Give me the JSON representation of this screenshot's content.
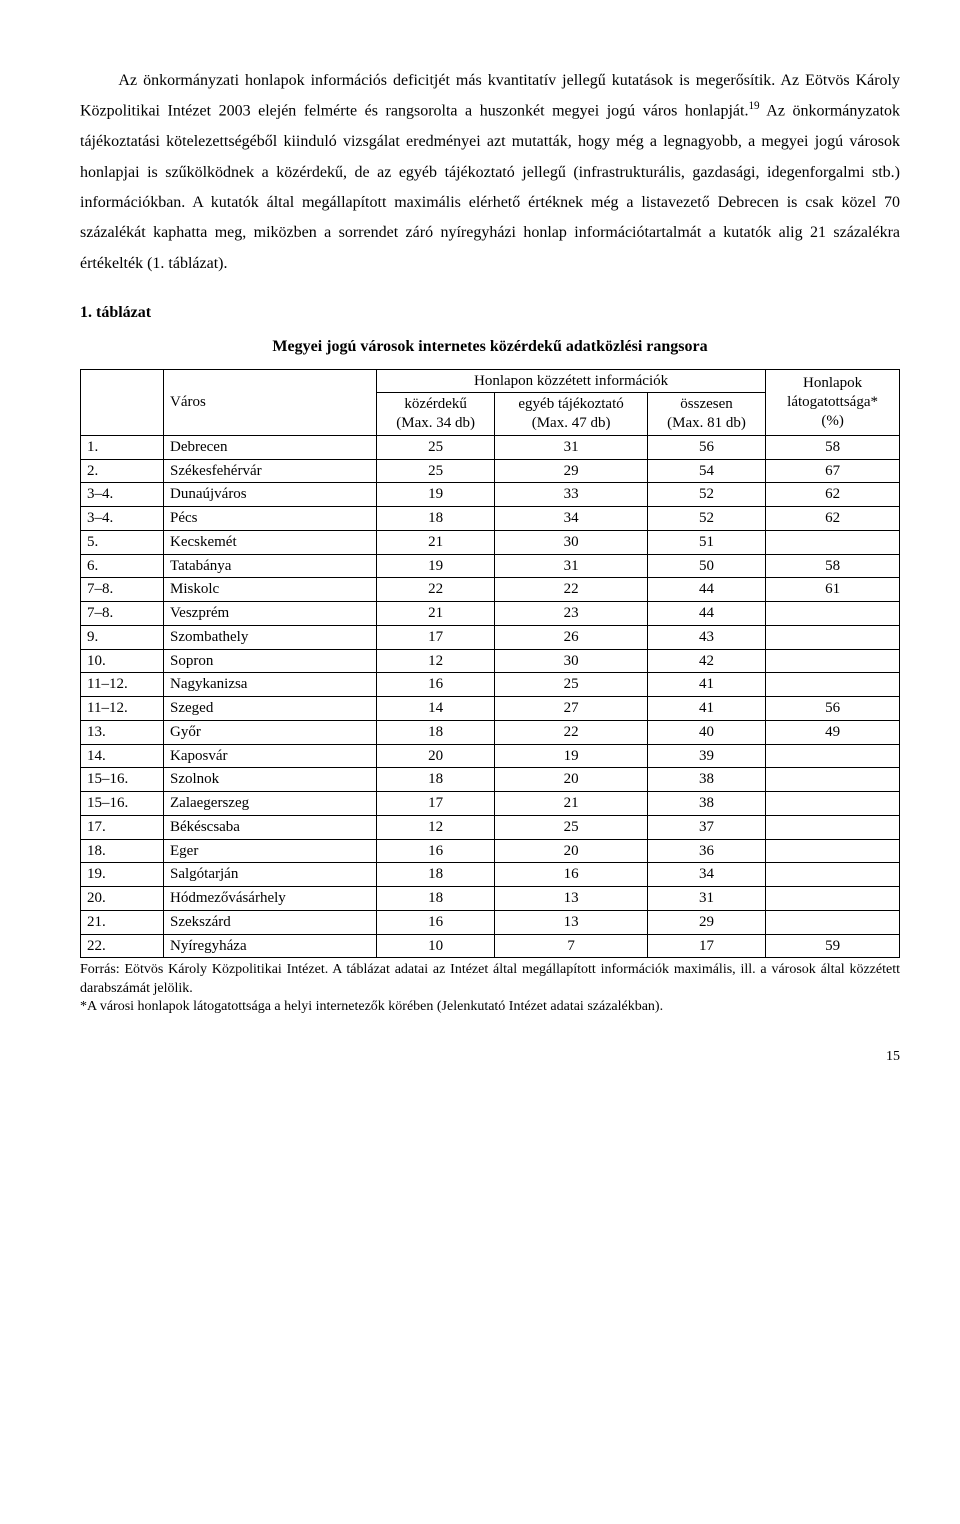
{
  "body_text": "Az önkormányzati honlapok információs deficitjét más kvantitatív jellegű kutatások is megerősítik. Az Eötvös Károly Közpolitikai Intézet 2003 elején felmérte és rangsorolta a huszonkét megyei jogú város honlapját.<sup>19</sup> Az önkormányzatok tájékoztatási kötelezettségéből kiinduló vizsgálat eredményei azt mutatták, hogy még a legnagyobb, a megyei jogú városok honlapjai is szűkölködnek a közérdekű, de az egyéb tájékoztató jellegű (infrastrukturális, gazdasági, idegenforgalmi stb.) információkban. A kutatók által megállapított maximális elérhető értéknek még a listavezető Debrecen is csak közel 70 százalékát kaphatta meg, miközben a sorrendet záró nyíregyházi honlap információtartalmát a kutatók alig 21 százalékra értékelték (1. táblázat).",
  "table": {
    "caption_label": "1. táblázat",
    "caption_title": "Megyei jogú városok internetes közérdekű adatközlési rangsora",
    "header_city": "Város",
    "header_group": "Honlapon közzétett információk",
    "header_col1": "közérdekű\n(Max. 34 db)",
    "header_col2": "egyéb tájékoztató\n(Max. 47 db)",
    "header_col3": "összesen\n(Max. 81 db)",
    "header_col4": "Honlapok\nlátogatottsága*\n(%)",
    "rows": [
      {
        "rank": "1.",
        "city": "Debrecen",
        "c1": "25",
        "c2": "31",
        "c3": "56",
        "c4": "58"
      },
      {
        "rank": "2.",
        "city": "Székesfehérvár",
        "c1": "25",
        "c2": "29",
        "c3": "54",
        "c4": "67"
      },
      {
        "rank": "3–4.",
        "city": "Dunaújváros",
        "c1": "19",
        "c2": "33",
        "c3": "52",
        "c4": "62"
      },
      {
        "rank": "3–4.",
        "city": "Pécs",
        "c1": "18",
        "c2": "34",
        "c3": "52",
        "c4": "62"
      },
      {
        "rank": "5.",
        "city": "Kecskemét",
        "c1": "21",
        "c2": "30",
        "c3": "51",
        "c4": ""
      },
      {
        "rank": "6.",
        "city": "Tatabánya",
        "c1": "19",
        "c2": "31",
        "c3": "50",
        "c4": "58"
      },
      {
        "rank": "7–8.",
        "city": "Miskolc",
        "c1": "22",
        "c2": "22",
        "c3": "44",
        "c4": "61"
      },
      {
        "rank": "7–8.",
        "city": "Veszprém",
        "c1": "21",
        "c2": "23",
        "c3": "44",
        "c4": ""
      },
      {
        "rank": "9.",
        "city": "Szombathely",
        "c1": "17",
        "c2": "26",
        "c3": "43",
        "c4": ""
      },
      {
        "rank": "10.",
        "city": "Sopron",
        "c1": "12",
        "c2": "30",
        "c3": "42",
        "c4": ""
      },
      {
        "rank": "11–12.",
        "city": "Nagykanizsa",
        "c1": "16",
        "c2": "25",
        "c3": "41",
        "c4": ""
      },
      {
        "rank": "11–12.",
        "city": "Szeged",
        "c1": "14",
        "c2": "27",
        "c3": "41",
        "c4": "56"
      },
      {
        "rank": "13.",
        "city": "Győr",
        "c1": "18",
        "c2": "22",
        "c3": "40",
        "c4": "49"
      },
      {
        "rank": "14.",
        "city": "Kaposvár",
        "c1": "20",
        "c2": "19",
        "c3": "39",
        "c4": ""
      },
      {
        "rank": "15–16.",
        "city": "Szolnok",
        "c1": "18",
        "c2": "20",
        "c3": "38",
        "c4": ""
      },
      {
        "rank": "15–16.",
        "city": "Zalaegerszeg",
        "c1": "17",
        "c2": "21",
        "c3": "38",
        "c4": ""
      },
      {
        "rank": "17.",
        "city": "Békéscsaba",
        "c1": "12",
        "c2": "25",
        "c3": "37",
        "c4": ""
      },
      {
        "rank": "18.",
        "city": "Eger",
        "c1": "16",
        "c2": "20",
        "c3": "36",
        "c4": ""
      },
      {
        "rank": "19.",
        "city": "Salgótarján",
        "c1": "18",
        "c2": "16",
        "c3": "34",
        "c4": ""
      },
      {
        "rank": "20.",
        "city": "Hódmezővásárhely",
        "c1": "18",
        "c2": "13",
        "c3": "31",
        "c4": ""
      },
      {
        "rank": "21.",
        "city": "Szekszárd",
        "c1": "16",
        "c2": "13",
        "c3": "29",
        "c4": ""
      },
      {
        "rank": "22.",
        "city": "Nyíregyháza",
        "c1": "10",
        "c2": "7",
        "c3": "17",
        "c4": "59"
      }
    ]
  },
  "source_note": "Forrás: Eötvös Károly Közpolitikai Intézet.  A táblázat adatai az Intézet által megállapított információk maximális, ill. a városok által közzétett darabszámát jelölik.\n*A városi honlapok látogatottsága a helyi internetezők körében (Jelenkutató Intézet adatai százalékban).",
  "page_number": "15"
}
